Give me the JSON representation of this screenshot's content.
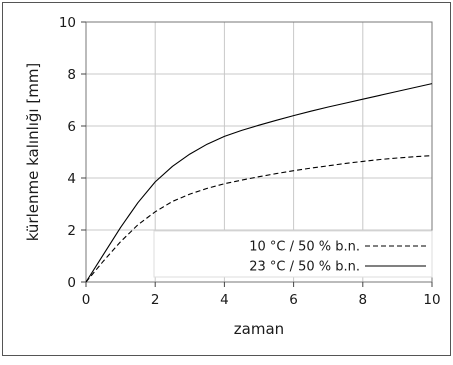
{
  "chart_data": {
    "type": "line",
    "xlabel": "zaman",
    "ylabel": "kürlenme kalınlığı [mm]",
    "xlim": [
      0,
      10
    ],
    "ylim": [
      0,
      10
    ],
    "x_ticks": [
      0,
      2,
      4,
      6,
      8,
      10
    ],
    "y_ticks": [
      0,
      2,
      4,
      6,
      8,
      10
    ],
    "x_tick_labels": [
      "0",
      "2",
      "4",
      "6",
      "8",
      "10"
    ],
    "y_tick_labels": [
      "0",
      "2",
      "4",
      "6",
      "8",
      "10"
    ],
    "grid": true,
    "legend_position": "bottom-right",
    "series": [
      {
        "name": "10 °C / 50 % b.n.",
        "style": "dashed",
        "color": "#000000",
        "x": [
          0,
          0.5,
          1,
          1.5,
          2,
          2.5,
          3,
          3.5,
          4,
          4.5,
          5,
          5.5,
          6,
          6.5,
          7,
          7.5,
          8,
          8.5,
          9,
          9.5,
          10
        ],
        "y": [
          0,
          0.8,
          1.55,
          2.2,
          2.7,
          3.1,
          3.38,
          3.6,
          3.78,
          3.92,
          4.05,
          4.17,
          4.28,
          4.38,
          4.47,
          4.56,
          4.64,
          4.71,
          4.77,
          4.82,
          4.86
        ]
      },
      {
        "name": "23 °C / 50 % b.n.",
        "style": "solid",
        "color": "#000000",
        "x": [
          0,
          0.5,
          1,
          1.5,
          2,
          2.5,
          3,
          3.5,
          4,
          4.5,
          5,
          5.5,
          6,
          6.5,
          7,
          7.5,
          8,
          8.5,
          9,
          9.5,
          10
        ],
        "y": [
          0,
          1.05,
          2.1,
          3.05,
          3.85,
          4.45,
          4.92,
          5.3,
          5.6,
          5.83,
          6.03,
          6.22,
          6.4,
          6.57,
          6.73,
          6.88,
          7.03,
          7.18,
          7.33,
          7.48,
          7.63
        ]
      }
    ]
  }
}
